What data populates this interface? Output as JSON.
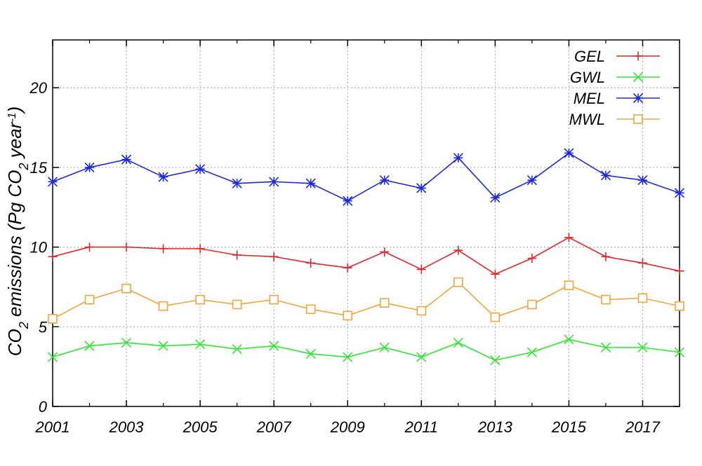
{
  "chart_data": {
    "type": "line",
    "title": "",
    "xlabel": "",
    "ylabel": {
      "prefix": "CO",
      "sub1": "2",
      "mid": " emissions (Pg CO",
      "sub2": "2",
      "mid2": " year",
      "sup": "-1",
      "suffix": ")"
    },
    "x": [
      2001,
      2002,
      2003,
      2004,
      2005,
      2006,
      2007,
      2008,
      2009,
      2010,
      2011,
      2012,
      2013,
      2014,
      2015,
      2016,
      2017,
      2018
    ],
    "xlim": [
      2001,
      2018
    ],
    "ylim": [
      0,
      23
    ],
    "xticks": [
      "2001",
      "2003",
      "2005",
      "2007",
      "2009",
      "2011",
      "2013",
      "2015",
      "2017"
    ],
    "xtick_values": [
      2001,
      2003,
      2005,
      2007,
      2009,
      2011,
      2013,
      2015,
      2017
    ],
    "yticks": [
      "0",
      "5",
      "10",
      "15",
      "20"
    ],
    "ytick_values": [
      0,
      5,
      10,
      15,
      20
    ],
    "grid": true,
    "legend_position": "top-right",
    "series": [
      {
        "name": "GEL",
        "color": "#e8232a",
        "marker": "plus",
        "values": [
          9.4,
          10.0,
          10.0,
          9.9,
          9.9,
          9.5,
          9.4,
          9.0,
          8.7,
          9.7,
          8.6,
          9.8,
          8.3,
          9.3,
          10.6,
          9.4,
          9.0,
          8.5
        ]
      },
      {
        "name": "GWL",
        "color": "#2ee82e",
        "marker": "x",
        "values": [
          3.1,
          3.8,
          4.0,
          3.8,
          3.9,
          3.6,
          3.8,
          3.3,
          3.1,
          3.7,
          3.1,
          4.0,
          2.9,
          3.4,
          4.2,
          3.7,
          3.7,
          3.4
        ]
      },
      {
        "name": "MEL",
        "color": "#1b28e0",
        "marker": "star",
        "values": [
          14.1,
          15.0,
          15.5,
          14.4,
          14.9,
          14.0,
          14.1,
          14.0,
          12.9,
          14.2,
          13.7,
          15.6,
          13.1,
          14.2,
          15.9,
          14.5,
          14.2,
          13.4
        ]
      },
      {
        "name": "MWL",
        "color": "#f2a53a",
        "marker": "square",
        "values": [
          5.5,
          6.7,
          7.4,
          6.3,
          6.7,
          6.4,
          6.7,
          6.1,
          5.7,
          6.5,
          6.0,
          7.8,
          5.6,
          6.4,
          7.6,
          6.7,
          6.8,
          6.3
        ]
      }
    ]
  }
}
